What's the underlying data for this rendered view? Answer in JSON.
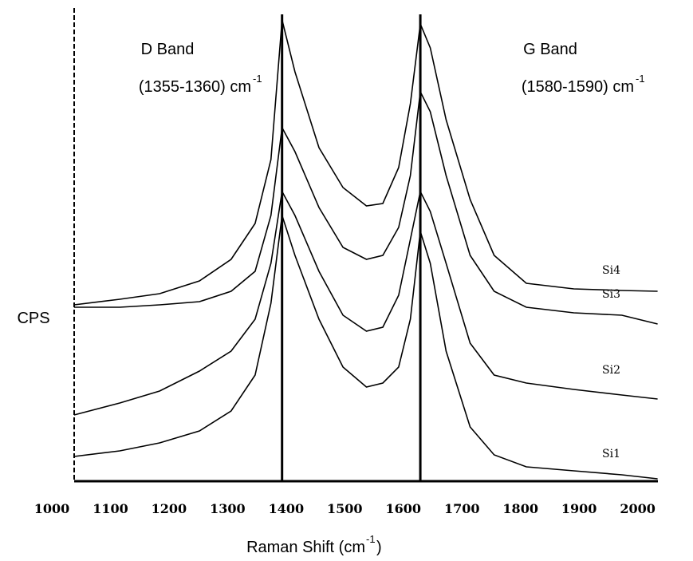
{
  "chart_data": {
    "type": "line",
    "x_label": "Raman Shift (cm",
    "x_label_sup": "-1",
    "x_label_end": ")",
    "y_label": "CPS",
    "annotations": [
      {
        "text": "D Band"
      },
      {
        "text": "(1355-1360) cm",
        "sup": "-1"
      },
      {
        "text": "G Band"
      },
      {
        "text": "(1580-1590) cm",
        "sup": "-1"
      }
    ],
    "x": [
      1038,
      1116,
      1184,
      1252,
      1306,
      1347,
      1374,
      1393,
      1415,
      1456,
      1497,
      1537,
      1565,
      1592,
      1612,
      1629,
      1646,
      1673,
      1714,
      1755,
      1810,
      1891,
      1973,
      2034
    ],
    "series": [
      {
        "name": "Si4",
        "color": "#000000",
        "values": [
          221,
          228,
          235,
          251,
          278,
          323,
          403,
          578,
          513,
          418,
          368,
          345,
          348,
          393,
          473,
          573,
          543,
          453,
          353,
          283,
          248,
          241,
          239,
          238
        ]
      },
      {
        "name": "Si3",
        "color": "#000000",
        "values": [
          218,
          218,
          221,
          225,
          238,
          263,
          333,
          443,
          413,
          343,
          293,
          278,
          283,
          318,
          383,
          488,
          463,
          383,
          283,
          238,
          218,
          211,
          208,
          197
        ]
      },
      {
        "name": "Si2",
        "color": "#000000",
        "values": [
          83,
          98,
          113,
          138,
          163,
          203,
          273,
          363,
          333,
          263,
          208,
          188,
          193,
          233,
          303,
          363,
          338,
          273,
          173,
          133,
          123,
          115,
          108,
          103
        ]
      },
      {
        "name": "Si1",
        "color": "#000000",
        "values": [
          31,
          38,
          48,
          63,
          88,
          133,
          223,
          333,
          283,
          203,
          143,
          118,
          123,
          143,
          203,
          313,
          273,
          163,
          68,
          33,
          18,
          13,
          8,
          3
        ]
      }
    ],
    "vlines": [
      1393,
      1629
    ],
    "xlim": [
      1000,
      2040
    ],
    "ylim": [
      0,
      600
    ],
    "xticks": [
      1000,
      1100,
      1200,
      1300,
      1400,
      1500,
      1600,
      1700,
      1800,
      1900,
      2000
    ]
  }
}
